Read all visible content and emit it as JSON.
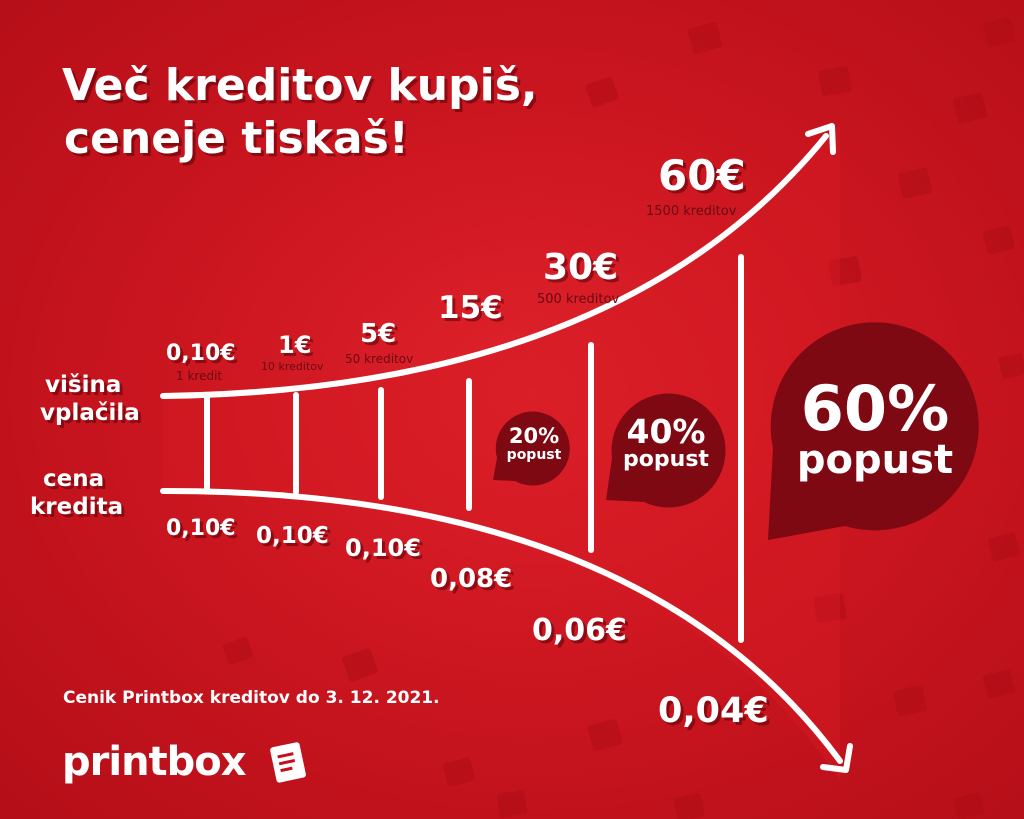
{
  "headline": {
    "line1": "Več kreditov kupiš,",
    "line2": "ceneje tiskaš!"
  },
  "row_labels": {
    "payment_line1": "višina",
    "payment_line2": "vplačila",
    "price_line1": "cena",
    "price_line2": "kredita"
  },
  "tiers": [
    {
      "payment": "0,10€",
      "credits": "1 kredit",
      "price": "0,10€"
    },
    {
      "payment": "1€",
      "credits": "10 kreditov",
      "price": "0,10€"
    },
    {
      "payment": "5€",
      "credits": "50 kreditov",
      "price": "0,10€"
    },
    {
      "payment": "15€",
      "credits": "",
      "price": "0,08€"
    },
    {
      "payment": "30€",
      "credits": "500 kreditov",
      "price": "0,06€"
    },
    {
      "payment": "60€",
      "credits": "1500 kreditov",
      "price": "0,04€"
    }
  ],
  "discounts": [
    {
      "percent": "20%",
      "word": "popust"
    },
    {
      "percent": "40%",
      "word": "popust"
    },
    {
      "percent": "60%",
      "word": "popust"
    }
  ],
  "footer": {
    "pricelist_note": "Cenik Printbox kreditov do 3. 12. 2021.",
    "logo_text": "printbox"
  },
  "colors": {
    "background": "#c4101d",
    "bubble": "#7e0913",
    "text": "#ffffff",
    "credits_text": "#6b0a12"
  }
}
